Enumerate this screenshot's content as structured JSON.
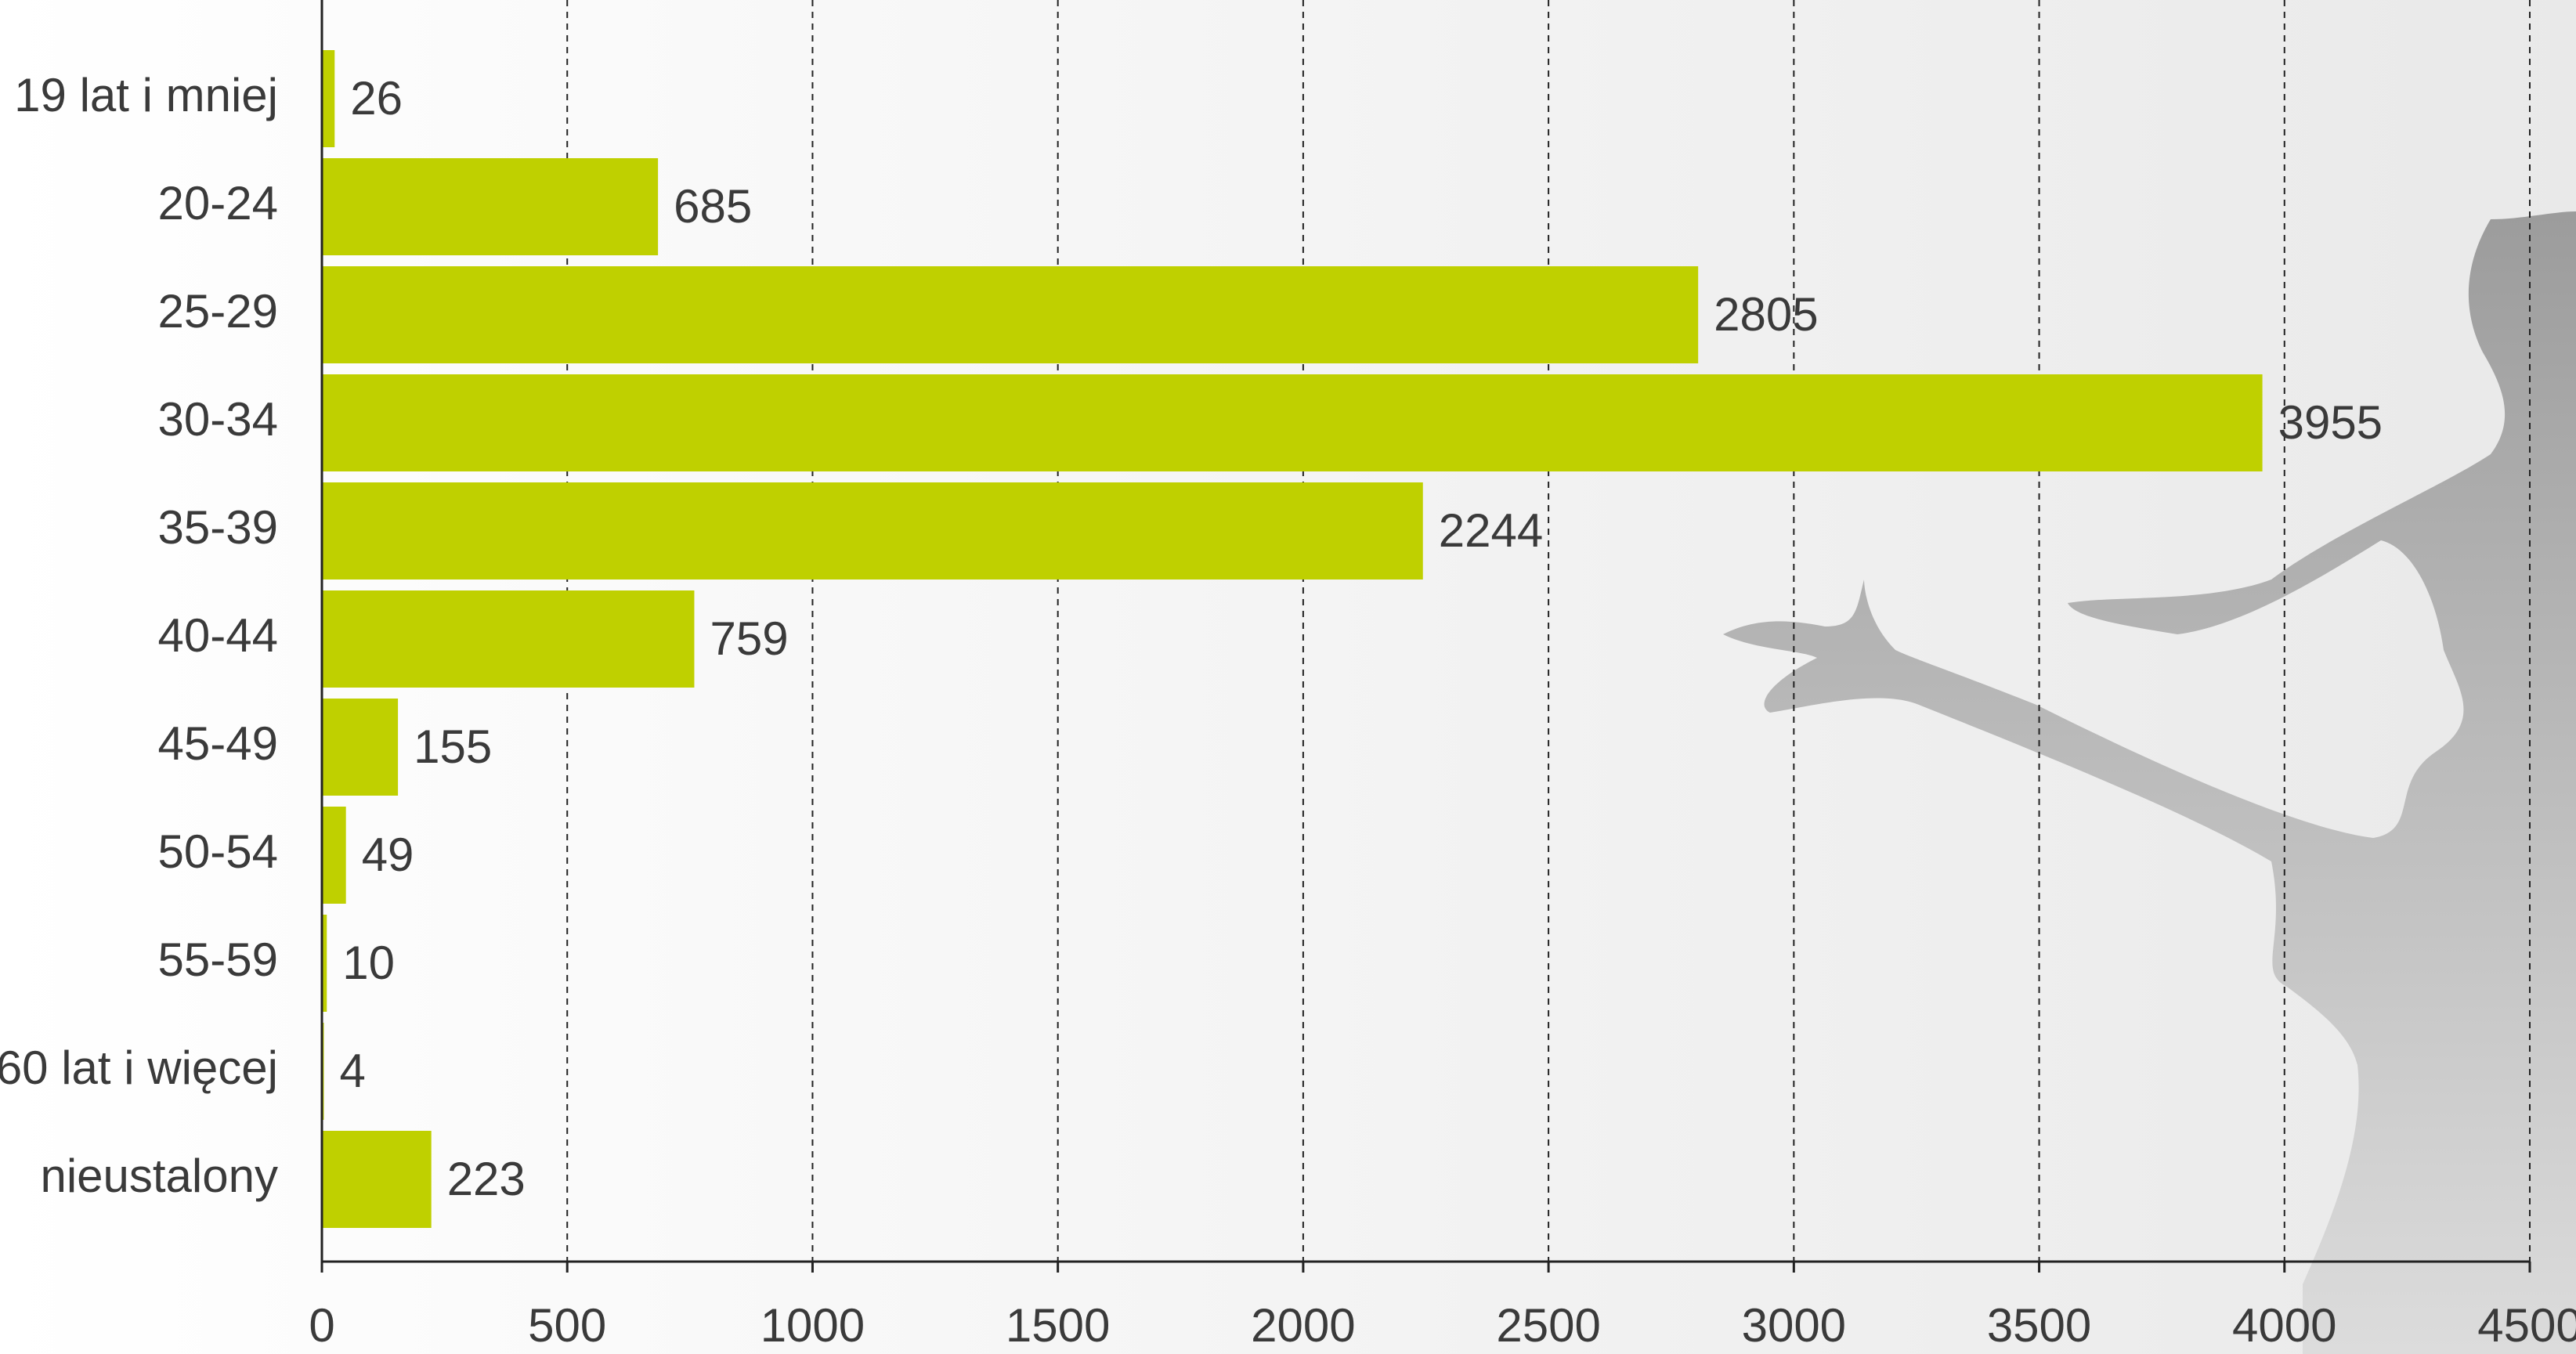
{
  "chart_data": {
    "type": "bar",
    "orientation": "horizontal",
    "categories": [
      "19 lat i mniej",
      "20-24",
      "25-29",
      "30-34",
      "35-39",
      "40-44",
      "45-49",
      "50-54",
      "55-59",
      "60 lat i więcej",
      "nieustalony"
    ],
    "values": [
      26,
      685,
      2805,
      3955,
      2244,
      759,
      155,
      49,
      10,
      4,
      223
    ],
    "color": "#bfd000",
    "xlim": [
      0,
      4500
    ],
    "xticks": [
      0,
      500,
      1000,
      1500,
      2000,
      2500,
      3000,
      3500,
      4000,
      4500
    ],
    "grid": true
  }
}
